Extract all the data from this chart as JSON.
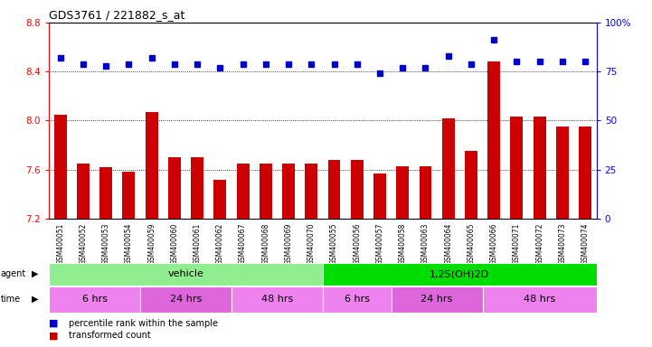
{
  "title": "GDS3761 / 221882_s_at",
  "samples": [
    "GSM400051",
    "GSM400052",
    "GSM400053",
    "GSM400054",
    "GSM400059",
    "GSM400060",
    "GSM400061",
    "GSM400062",
    "GSM400067",
    "GSM400068",
    "GSM400069",
    "GSM400070",
    "GSM400055",
    "GSM400056",
    "GSM400057",
    "GSM400058",
    "GSM400063",
    "GSM400064",
    "GSM400065",
    "GSM400066",
    "GSM400071",
    "GSM400072",
    "GSM400073",
    "GSM400074"
  ],
  "bar_values": [
    8.05,
    7.65,
    7.62,
    7.58,
    8.07,
    7.7,
    7.7,
    7.52,
    7.65,
    7.65,
    7.65,
    7.65,
    7.68,
    7.68,
    7.57,
    7.63,
    7.63,
    8.02,
    7.75,
    8.48,
    8.03,
    8.03,
    7.95,
    7.95
  ],
  "percentile_values": [
    82,
    79,
    78,
    79,
    82,
    79,
    79,
    77,
    79,
    79,
    79,
    79,
    79,
    79,
    74,
    77,
    77,
    83,
    79,
    91,
    80,
    80,
    80,
    80
  ],
  "ylim_left": [
    7.2,
    8.8
  ],
  "ylim_right": [
    0,
    100
  ],
  "yticks_left": [
    7.2,
    7.6,
    8.0,
    8.4,
    8.8
  ],
  "yticks_right": [
    0,
    25,
    50,
    75,
    100
  ],
  "bar_color": "#cc0000",
  "dot_color": "#0000cc",
  "agent_groups": [
    {
      "label": "vehicle",
      "start": 0,
      "end": 12,
      "color": "#90ee90"
    },
    {
      "label": "1,25(OH)2D",
      "start": 12,
      "end": 24,
      "color": "#00dd00"
    }
  ],
  "time_groups": [
    {
      "label": "6 hrs",
      "start": 0,
      "end": 4,
      "color": "#ee82ee"
    },
    {
      "label": "24 hrs",
      "start": 4,
      "end": 8,
      "color": "#dd66dd"
    },
    {
      "label": "48 hrs",
      "start": 8,
      "end": 12,
      "color": "#ee82ee"
    },
    {
      "label": "6 hrs",
      "start": 12,
      "end": 15,
      "color": "#ee82ee"
    },
    {
      "label": "24 hrs",
      "start": 15,
      "end": 19,
      "color": "#dd66dd"
    },
    {
      "label": "48 hrs",
      "start": 19,
      "end": 24,
      "color": "#ee82ee"
    }
  ]
}
